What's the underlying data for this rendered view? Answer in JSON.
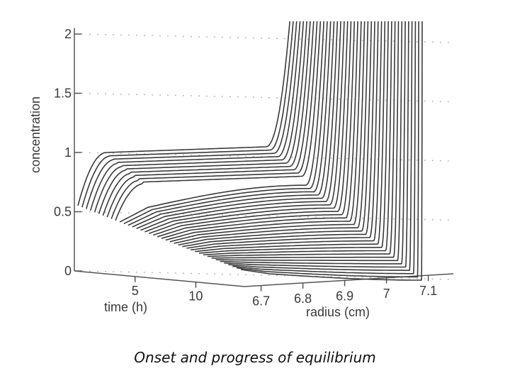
{
  "caption": "Onset and progress of equilibrium",
  "chart_data": {
    "type": "line",
    "subtype": "3d-waterfall",
    "title": "",
    "zlabel": "concentration",
    "xlabel": "time (h)",
    "ylabel": "radius (cm)",
    "z_ticks": [
      "0",
      "0.5",
      "1",
      "1.5",
      "2"
    ],
    "z_range": [
      0,
      2
    ],
    "time_ticks": [
      "5",
      "10"
    ],
    "radius_ticks": [
      "6.7",
      "6.8",
      "6.9",
      "7",
      "7.1"
    ],
    "radius_range": [
      6.66,
      7.16
    ],
    "time_range": [
      0,
      14
    ],
    "grid": "dotted horizontal",
    "series_count": 40,
    "description_of_curves": "Each curve is concentration vs radius at a successive time; curves rise from a depleted meniscus region to a plateau near 1 and then climb steeply above 2 toward the cell bottom.",
    "line_color": "#3a3a3a"
  }
}
